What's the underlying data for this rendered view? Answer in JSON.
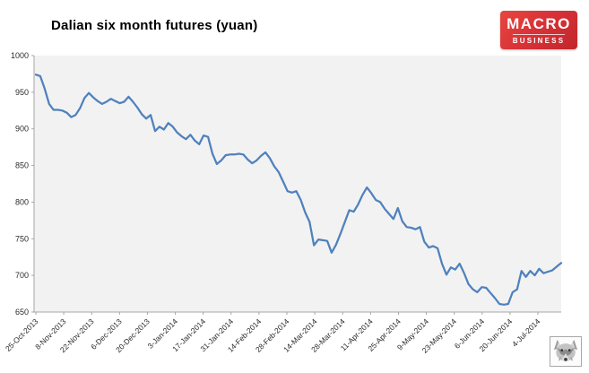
{
  "header": {
    "logo": {
      "line1": "MACRO",
      "line2": "BUSINESS",
      "bg_color_top": "#e8463f",
      "bg_color_bottom": "#c1262c",
      "text_color": "#ffffff"
    }
  },
  "icons": {
    "bottom_right": "wolf-icon"
  },
  "chart_data": {
    "type": "line",
    "title": "Dalian six month futures (yuan)",
    "xlabel": "",
    "ylabel": "",
    "ylim": [
      650,
      1000
    ],
    "grid": "off",
    "legend": "none",
    "series_color": "#4f81bd",
    "plot_bg_color": "#f2f2f2",
    "axis_color": "#a6a6a6",
    "label_color": "#2b2b2b",
    "y_ticks": [
      1000,
      950,
      900,
      850,
      800,
      750,
      700,
      650
    ],
    "x_tick_labels": [
      "25-Oct-2013",
      "8-Nov-2013",
      "22-Nov-2013",
      "6-Dec-2013",
      "20-Dec-2013",
      "3-Jan-2014",
      "17-Jan-2014",
      "31-Jan-2014",
      "14-Feb-2014",
      "28-Feb-2014",
      "14-Mar-2014",
      "28-Mar-2014",
      "11-Apr-2014",
      "25-Apr-2014",
      "9-May-2014",
      "23-May-2014",
      "6-Jun-2014",
      "20-Jun-2014",
      "4-Jul-2014"
    ],
    "values": [
      974,
      972,
      955,
      934,
      926,
      926,
      925,
      922,
      916,
      919,
      928,
      942,
      949,
      943,
      938,
      934,
      937,
      941,
      938,
      935,
      937,
      944,
      937,
      929,
      920,
      914,
      919,
      897,
      903,
      899,
      908,
      903,
      895,
      890,
      886,
      892,
      884,
      879,
      891,
      889,
      866,
      852,
      857,
      864,
      865,
      865,
      866,
      865,
      858,
      853,
      857,
      863,
      868,
      860,
      849,
      841,
      828,
      815,
      813,
      815,
      803,
      786,
      773,
      741,
      749,
      748,
      747,
      731,
      742,
      757,
      773,
      789,
      787,
      797,
      810,
      820,
      812,
      803,
      800,
      791,
      784,
      777,
      792,
      774,
      766,
      765,
      763,
      766,
      746,
      738,
      740,
      737,
      716,
      701,
      711,
      708,
      716,
      703,
      688,
      681,
      677,
      684,
      683,
      676,
      669,
      661,
      660,
      661,
      677,
      681,
      706,
      698,
      706,
      700,
      709,
      703,
      705,
      707,
      712,
      717
    ]
  }
}
